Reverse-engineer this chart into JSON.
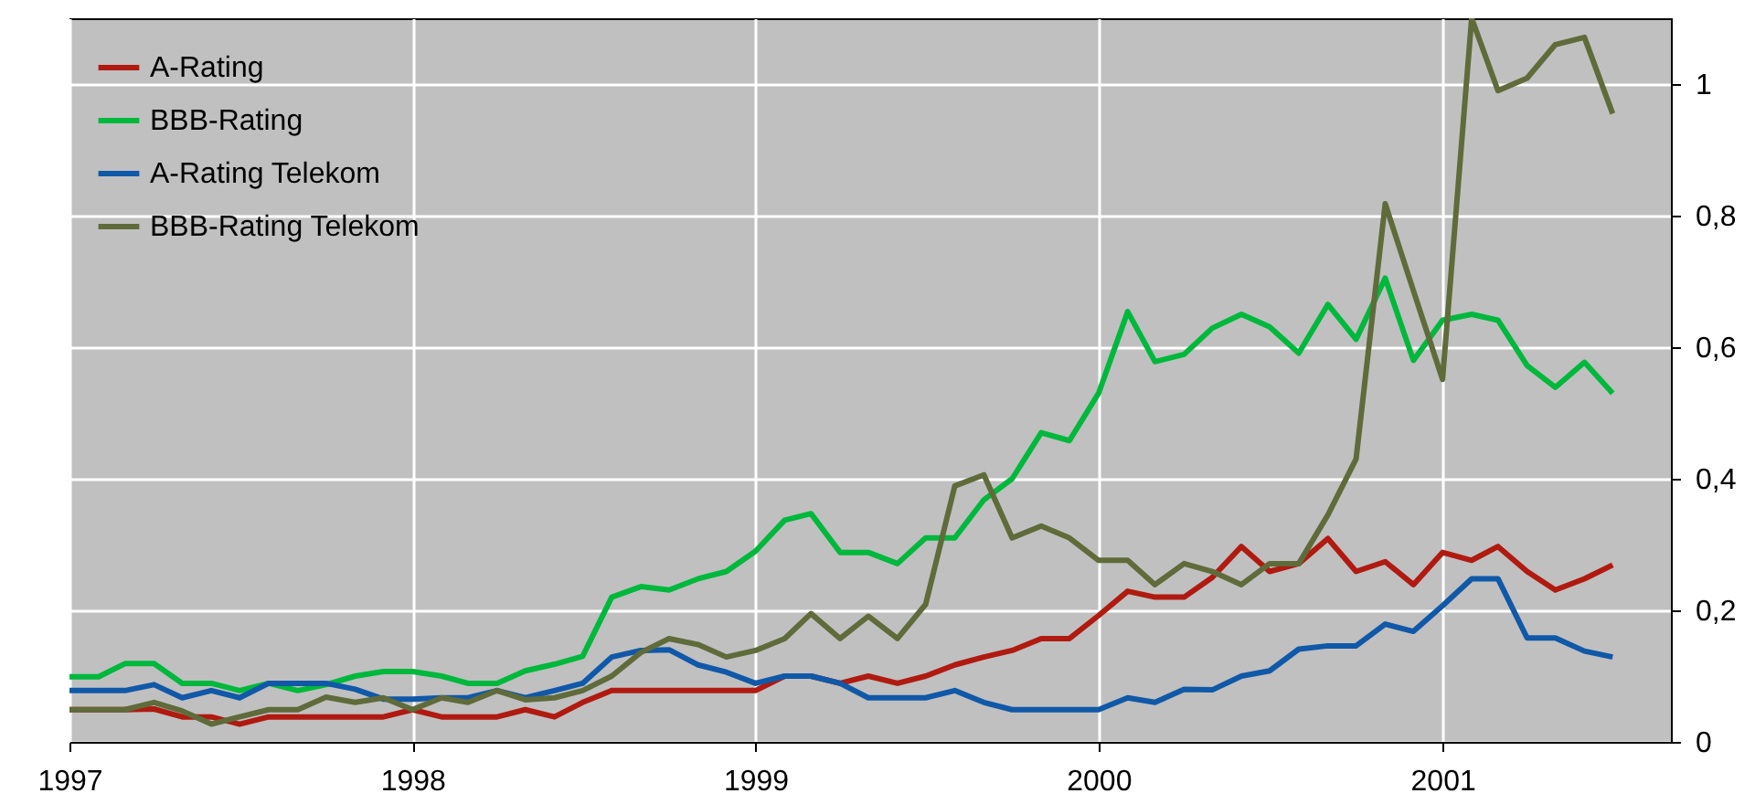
{
  "chart_data": {
    "type": "line",
    "x": [
      "1997-01",
      "1997-02",
      "1997-03",
      "1997-04",
      "1997-05",
      "1997-06",
      "1997-07",
      "1997-08",
      "1997-09",
      "1997-10",
      "1997-11",
      "1997-12",
      "1998-01",
      "1998-02",
      "1998-03",
      "1998-04",
      "1998-05",
      "1998-06",
      "1998-07",
      "1998-08",
      "1998-09",
      "1998-10",
      "1998-11",
      "1998-12",
      "1999-01",
      "1999-02",
      "1999-03",
      "1999-04",
      "1999-05",
      "1999-06",
      "1999-07",
      "1999-08",
      "1999-09",
      "1999-10",
      "1999-11",
      "1999-12",
      "2000-01",
      "2000-02",
      "2000-03",
      "2000-04",
      "2000-05",
      "2000-06",
      "2000-07",
      "2000-08",
      "2000-09",
      "2000-10",
      "2000-11",
      "2000-12",
      "2001-01",
      "2001-02",
      "2001-03",
      "2001-04",
      "2001-05",
      "2001-06",
      "2001-07"
    ],
    "series": [
      {
        "name": "A-Rating",
        "color": "#b01a10",
        "values": [
          0.049,
          0.049,
          0.049,
          0.05,
          0.038,
          0.038,
          0.027,
          0.038,
          0.038,
          0.038,
          0.038,
          0.038,
          0.049,
          0.038,
          0.038,
          0.038,
          0.049,
          0.038,
          0.06,
          0.078,
          0.078,
          0.078,
          0.078,
          0.078,
          0.078,
          0.1,
          0.1,
          0.089,
          0.1,
          0.089,
          0.1,
          0.117,
          0.129,
          0.139,
          0.157,
          0.157,
          0.192,
          0.229,
          0.22,
          0.22,
          0.25,
          0.297,
          0.259,
          0.271,
          0.309,
          0.259,
          0.274,
          0.239,
          0.288,
          0.276,
          0.297,
          0.259,
          0.231,
          0.248,
          0.269
        ]
      },
      {
        "name": "BBB-Rating",
        "color": "#00b83c",
        "values": [
          0.099,
          0.099,
          0.119,
          0.119,
          0.089,
          0.089,
          0.078,
          0.089,
          0.078,
          0.087,
          0.1,
          0.107,
          0.107,
          0.1,
          0.089,
          0.089,
          0.108,
          0.118,
          0.13,
          0.22,
          0.236,
          0.231,
          0.248,
          0.259,
          0.29,
          0.337,
          0.347,
          0.288,
          0.288,
          0.271,
          0.31,
          0.31,
          0.368,
          0.4,
          0.47,
          0.458,
          0.53,
          0.654,
          0.578,
          0.589,
          0.629,
          0.65,
          0.631,
          0.591,
          0.665,
          0.612,
          0.705,
          0.58,
          0.641,
          0.65,
          0.641,
          0.572,
          0.539,
          0.577,
          0.53
        ]
      },
      {
        "name": "A-Rating Telekom",
        "color": "#1058a8",
        "values": [
          0.078,
          0.078,
          0.078,
          0.087,
          0.067,
          0.078,
          0.067,
          0.089,
          0.089,
          0.089,
          0.08,
          0.065,
          0.065,
          0.067,
          0.067,
          0.078,
          0.067,
          0.078,
          0.089,
          0.129,
          0.139,
          0.14,
          0.117,
          0.106,
          0.089,
          0.1,
          0.1,
          0.089,
          0.067,
          0.067,
          0.067,
          0.078,
          0.06,
          0.049,
          0.049,
          0.049,
          0.049,
          0.067,
          0.06,
          0.08,
          0.079,
          0.1,
          0.108,
          0.141,
          0.146,
          0.146,
          0.179,
          0.168,
          0.207,
          0.248,
          0.248,
          0.158,
          0.158,
          0.138,
          0.129
        ]
      },
      {
        "name": "BBB-Rating Telekom",
        "color": "#5f6b3a",
        "values": [
          0.049,
          0.049,
          0.049,
          0.06,
          0.047,
          0.027,
          0.038,
          0.049,
          0.049,
          0.068,
          0.06,
          0.067,
          0.049,
          0.067,
          0.06,
          0.078,
          0.064,
          0.067,
          0.078,
          0.1,
          0.136,
          0.157,
          0.148,
          0.129,
          0.139,
          0.157,
          0.195,
          0.157,
          0.191,
          0.157,
          0.209,
          0.389,
          0.406,
          0.31,
          0.328,
          0.31,
          0.276,
          0.276,
          0.239,
          0.271,
          0.259,
          0.239,
          0.271,
          0.271,
          0.345,
          0.43,
          0.818,
          0.686,
          0.551,
          1.1,
          0.99,
          1.009,
          1.06,
          1.071,
          0.955
        ]
      }
    ],
    "xlim": [
      "1997-01",
      "2001-09"
    ],
    "xticks": [
      "1997",
      "1998",
      "1999",
      "2000",
      "2001"
    ],
    "ylim": [
      0,
      1.1
    ],
    "yticks": [
      0,
      {
        "value": 0.2,
        "label": "0,2"
      },
      {
        "value": 0.4,
        "label": "0,4"
      },
      {
        "value": 0.6,
        "label": "0,6"
      },
      {
        "value": 0.8,
        "label": "0,8"
      },
      1
    ],
    "grid": true,
    "legend": "top left",
    "line_style": "solid"
  }
}
